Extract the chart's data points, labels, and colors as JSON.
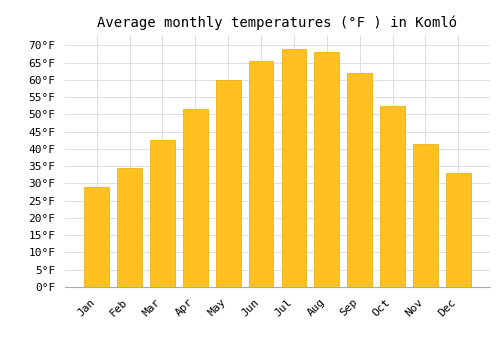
{
  "title": "Average monthly temperatures (°F ) in Komló",
  "months": [
    "Jan",
    "Feb",
    "Mar",
    "Apr",
    "May",
    "Jun",
    "Jul",
    "Aug",
    "Sep",
    "Oct",
    "Nov",
    "Dec"
  ],
  "values": [
    29,
    34.5,
    42.5,
    51.5,
    60,
    65.5,
    69,
    68,
    62,
    52.5,
    41.5,
    33
  ],
  "bar_color": "#FFC020",
  "bar_edge_color": "#E8A800",
  "background_color": "#FFFFFF",
  "grid_color": "#DDDDDD",
  "ylim": [
    0,
    73
  ],
  "yticks": [
    0,
    5,
    10,
    15,
    20,
    25,
    30,
    35,
    40,
    45,
    50,
    55,
    60,
    65,
    70
  ],
  "title_fontsize": 10,
  "tick_fontsize": 8,
  "font_family": "monospace"
}
